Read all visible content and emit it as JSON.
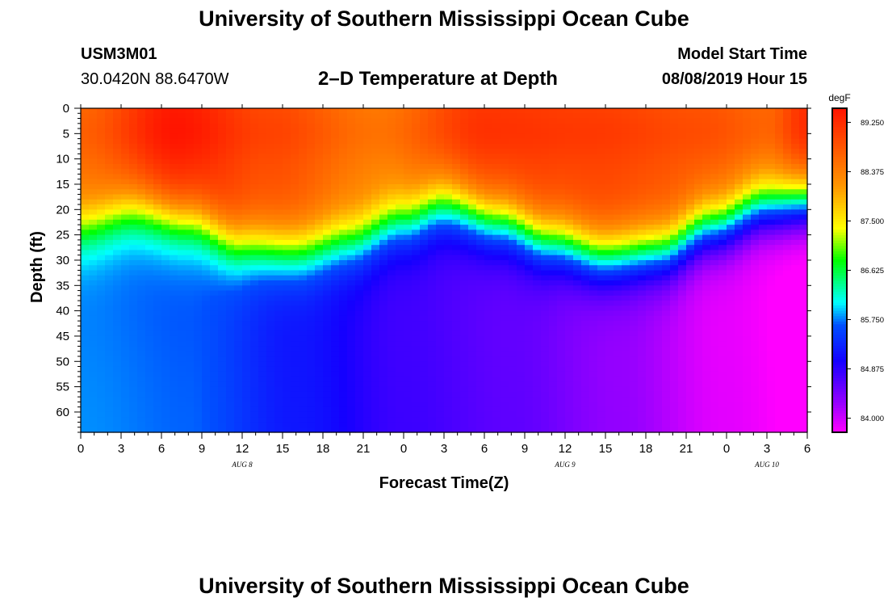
{
  "header": {
    "title_top": "University of Southern Mississippi Ocean Cube",
    "station_id": "USM3M01",
    "station_coords": "30.0420N 88.6470W",
    "plot_title": "2–D Temperature at Depth",
    "model_start_label": "Model Start Time",
    "model_start_value": "08/08/2019 Hour 15",
    "title_bottom": "University of Southern Mississippi Ocean Cube"
  },
  "chart_data": {
    "type": "heatmap",
    "title": "2–D Temperature at Depth",
    "xlabel": "Forecast Time(Z)",
    "ylabel": "Depth (ft)",
    "x_ticks": [
      "0",
      "3",
      "6",
      "9",
      "12",
      "15",
      "18",
      "21",
      "0",
      "3",
      "6",
      "9",
      "12",
      "15",
      "18",
      "21",
      "0",
      "3",
      "6"
    ],
    "x_hours": [
      0,
      3,
      6,
      9,
      12,
      15,
      18,
      21,
      24,
      27,
      30,
      33,
      36,
      39,
      42,
      45,
      48,
      51,
      54
    ],
    "xlim_hours": [
      0,
      54
    ],
    "day_labels": [
      {
        "text": "AUG 8",
        "hour": 12
      },
      {
        "text": "AUG 9",
        "hour": 36
      },
      {
        "text": "AUG 10",
        "hour": 51
      }
    ],
    "y_ticks": [
      0,
      5,
      10,
      15,
      20,
      25,
      30,
      35,
      40,
      45,
      50,
      55,
      60
    ],
    "ylim_ft": [
      0,
      64
    ],
    "colorbar": {
      "units": "degF",
      "labels": [
        "89.250",
        "88.375",
        "87.500",
        "86.625",
        "85.750",
        "84.875",
        "84.000"
      ],
      "range": [
        83.75,
        89.5
      ]
    },
    "thermocline_depth_ft": [
      {
        "hour": 0,
        "value": 23
      },
      {
        "hour": 4,
        "value": 20
      },
      {
        "hour": 8,
        "value": 22
      },
      {
        "hour": 12,
        "value": 27
      },
      {
        "hour": 16,
        "value": 28
      },
      {
        "hour": 20,
        "value": 26
      },
      {
        "hour": 24,
        "value": 22
      },
      {
        "hour": 27,
        "value": 19
      },
      {
        "hour": 31,
        "value": 22
      },
      {
        "hour": 35,
        "value": 26
      },
      {
        "hour": 39,
        "value": 29
      },
      {
        "hour": 43,
        "value": 28
      },
      {
        "hour": 47,
        "value": 23
      },
      {
        "hour": 51,
        "value": 19
      },
      {
        "hour": 54,
        "value": 18
      }
    ],
    "surface_temp_degF": [
      {
        "hour": 0,
        "value": 88.6
      },
      {
        "hour": 7,
        "value": 89.4
      },
      {
        "hour": 14,
        "value": 88.9
      },
      {
        "hour": 22,
        "value": 88.4
      },
      {
        "hour": 30,
        "value": 89.1
      },
      {
        "hour": 38,
        "value": 89.0
      },
      {
        "hour": 46,
        "value": 88.8
      },
      {
        "hour": 51,
        "value": 88.6
      },
      {
        "hour": 54,
        "value": 89.2
      }
    ],
    "bottom_temp_degF": [
      {
        "hour": 0,
        "value": 85.8
      },
      {
        "hour": 8,
        "value": 85.7
      },
      {
        "hour": 16,
        "value": 85.2
      },
      {
        "hour": 24,
        "value": 84.8
      },
      {
        "hour": 32,
        "value": 84.6
      },
      {
        "hour": 40,
        "value": 84.3
      },
      {
        "hour": 48,
        "value": 83.9
      },
      {
        "hour": 54,
        "value": 83.7
      }
    ]
  }
}
